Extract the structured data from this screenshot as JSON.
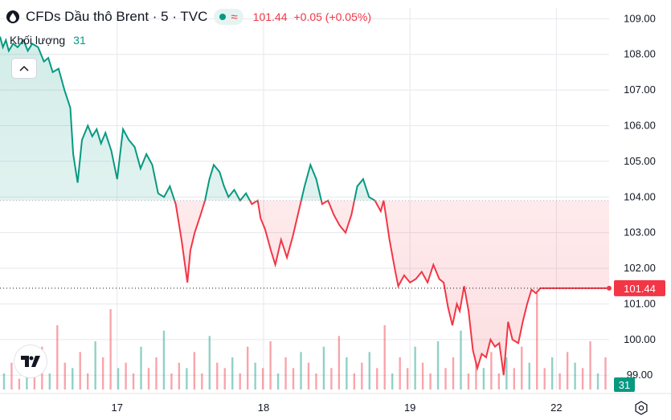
{
  "header": {
    "title": "CFDs Dầu thô Brent · 5 · TVC",
    "status_icon": "market-open-dot",
    "wave_symbol": "≈",
    "price": "101.44",
    "change": "+0.05 (+0.05%)"
  },
  "volume": {
    "label": "Khối lượng",
    "value": "31"
  },
  "colors": {
    "up": "#089981",
    "down": "#f23645",
    "up_fill": "#e6f4f1",
    "down_fill": "#fde8ea",
    "grid": "#e6e8ec",
    "text": "#131722"
  },
  "chart_data": {
    "type": "line",
    "title": "CFDs Dầu thô Brent · 5 · TVC",
    "baseline": 103.9,
    "last_price": 101.44,
    "last_price_label": "101.44",
    "volume_badge": "31",
    "ylim": [
      98.6,
      109.3
    ],
    "y_ticks": [
      "109.00",
      "108.00",
      "107.00",
      "106.00",
      "105.00",
      "104.00",
      "103.00",
      "102.00",
      "101.00",
      "100.00",
      "99.00"
    ],
    "y_tick_values": [
      109,
      108,
      107,
      106,
      105,
      104,
      103,
      102,
      101,
      100,
      99
    ],
    "x_ticks": [
      "17",
      "18",
      "19",
      "22"
    ],
    "x_tick_positions": [
      16.5,
      17.5,
      18.5,
      19.5
    ],
    "xlim": [
      15.7,
      19.86
    ],
    "grid": true,
    "series": [
      {
        "x": [
          15.7,
          15.72,
          15.74,
          15.76,
          15.79,
          15.82,
          15.86,
          15.89,
          15.92,
          15.96,
          16.0,
          16.03,
          16.06,
          16.1,
          16.14,
          16.18,
          16.2,
          16.23,
          16.26,
          16.3,
          16.33,
          16.36,
          16.39,
          16.42,
          16.46,
          16.5,
          16.54,
          16.58,
          16.62,
          16.66,
          16.7,
          16.74,
          16.78,
          16.82,
          16.86,
          16.9,
          16.94,
          16.98,
          17.0,
          17.03,
          17.07,
          17.1,
          17.13,
          17.16,
          17.2,
          17.23,
          17.26,
          17.3,
          17.34,
          17.38,
          17.42,
          17.46,
          17.48,
          17.51,
          17.55,
          17.58,
          17.62,
          17.66,
          17.7,
          17.74,
          17.78,
          17.82,
          17.86,
          17.9,
          17.94,
          17.98,
          18.02,
          18.06,
          18.1,
          18.14,
          18.18,
          18.22,
          18.26,
          18.3,
          18.32,
          18.36,
          18.4,
          18.42,
          18.46,
          18.5,
          18.54,
          18.58,
          18.62,
          18.66,
          18.7,
          18.73,
          18.76,
          18.79,
          18.82,
          18.84,
          18.87,
          18.9,
          18.93,
          18.96,
          18.99,
          19.02,
          19.05,
          19.08,
          19.11,
          19.14,
          19.17,
          19.2,
          19.24,
          19.27,
          19.3,
          19.33,
          19.36,
          19.39,
          19.42,
          19.46,
          19.49,
          19.52,
          19.55,
          19.58,
          19.62,
          19.66,
          19.7,
          19.74,
          19.78,
          19.82,
          19.86
        ],
        "values": [
          108.5,
          108.2,
          108.4,
          108.1,
          108.3,
          108.2,
          108.4,
          108.1,
          108.3,
          108.2,
          107.8,
          107.9,
          107.5,
          107.6,
          107.0,
          106.5,
          105.2,
          104.4,
          105.6,
          106.0,
          105.7,
          105.9,
          105.5,
          105.8,
          105.3,
          104.5,
          105.9,
          105.6,
          105.4,
          104.8,
          105.2,
          104.9,
          104.1,
          104.0,
          104.3,
          103.8,
          102.8,
          101.6,
          102.5,
          103.0,
          103.5,
          103.9,
          104.5,
          104.9,
          104.7,
          104.3,
          104.0,
          104.2,
          103.9,
          104.1,
          103.8,
          103.9,
          103.4,
          103.1,
          102.5,
          102.1,
          102.8,
          102.3,
          102.9,
          103.6,
          104.3,
          104.9,
          104.5,
          103.8,
          103.9,
          103.5,
          103.2,
          103.0,
          103.5,
          104.3,
          104.5,
          104.0,
          103.9,
          103.6,
          103.9,
          102.8,
          101.9,
          101.5,
          101.8,
          101.6,
          101.7,
          101.9,
          101.6,
          102.1,
          101.7,
          101.6,
          100.9,
          100.4,
          101.0,
          100.8,
          101.5,
          100.8,
          99.7,
          99.2,
          99.6,
          99.5,
          100.0,
          99.8,
          99.9,
          99.0,
          100.5,
          100.0,
          99.9,
          100.5,
          101.0,
          101.4,
          101.3,
          101.44,
          101.44,
          101.44,
          101.44,
          101.44,
          101.44,
          101.44,
          101.44,
          101.44,
          101.44,
          101.44,
          101.44,
          101.44,
          101.44
        ]
      }
    ],
    "volume_bars": [
      3,
      5,
      2,
      6,
      4,
      8,
      3,
      12,
      5,
      4,
      7,
      3,
      9,
      6,
      15,
      4,
      5,
      3,
      8,
      4,
      6,
      11,
      3,
      5,
      4,
      7,
      3,
      10,
      5,
      4,
      6,
      3,
      8,
      5,
      4,
      9,
      3,
      6,
      4,
      7,
      5,
      3,
      8,
      4,
      10,
      6,
      3,
      5,
      7,
      4,
      12,
      3,
      6,
      4,
      8,
      5,
      3,
      9,
      4,
      6,
      11,
      3,
      5,
      4,
      7,
      3,
      6,
      4,
      8,
      5,
      18,
      4,
      6,
      3,
      7,
      5,
      4,
      9,
      3,
      6
    ]
  }
}
